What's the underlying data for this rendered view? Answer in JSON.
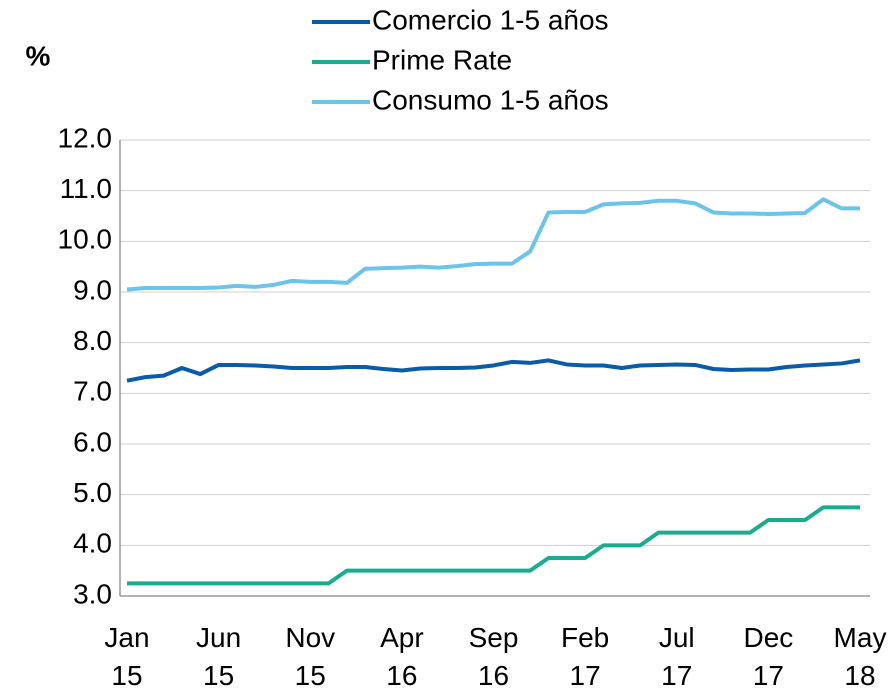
{
  "chart_data": {
    "type": "line",
    "y_label": "%",
    "categories": [
      "Jan 15",
      null,
      null,
      null,
      null,
      "Jun 15",
      null,
      null,
      null,
      null,
      "Nov 15",
      null,
      null,
      null,
      null,
      "Apr 16",
      null,
      null,
      null,
      null,
      "Sep 16",
      null,
      null,
      null,
      null,
      "Feb 17",
      null,
      null,
      null,
      null,
      "Jul 17",
      null,
      null,
      null,
      null,
      "Dec 17",
      null,
      null,
      null,
      null,
      "May 18"
    ],
    "series": [
      {
        "name": "Comercio 1-5 años",
        "color": "#0a5ca8",
        "values": [
          7.25,
          7.32,
          7.35,
          7.5,
          7.38,
          7.56,
          7.56,
          7.55,
          7.53,
          7.5,
          7.5,
          7.5,
          7.52,
          7.52,
          7.48,
          7.45,
          7.49,
          7.5,
          7.5,
          7.51,
          7.55,
          7.62,
          7.6,
          7.65,
          7.57,
          7.55,
          7.55,
          7.5,
          7.55,
          7.56,
          7.57,
          7.56,
          7.48,
          7.46,
          7.47,
          7.47,
          7.52,
          7.55,
          7.57,
          7.59,
          7.65
        ]
      },
      {
        "name": "Prime Rate",
        "color": "#19ac8e",
        "values": [
          3.25,
          3.25,
          3.25,
          3.25,
          3.25,
          3.25,
          3.25,
          3.25,
          3.25,
          3.25,
          3.25,
          3.25,
          3.5,
          3.5,
          3.5,
          3.5,
          3.5,
          3.5,
          3.5,
          3.5,
          3.5,
          3.5,
          3.5,
          3.75,
          3.75,
          3.75,
          4.0,
          4.0,
          4.0,
          4.25,
          4.25,
          4.25,
          4.25,
          4.25,
          4.25,
          4.5,
          4.5,
          4.5,
          4.75,
          4.75,
          4.75
        ]
      },
      {
        "name": "Consumo 1-5 años",
        "color": "#6cc4ea",
        "values": [
          9.05,
          9.08,
          9.08,
          9.08,
          9.08,
          9.09,
          9.12,
          9.1,
          9.14,
          9.22,
          9.2,
          9.2,
          9.18,
          9.46,
          9.47,
          9.48,
          9.5,
          9.48,
          9.51,
          9.55,
          9.56,
          9.56,
          9.8,
          10.57,
          10.58,
          10.58,
          10.73,
          10.75,
          10.76,
          10.8,
          10.8,
          10.75,
          10.57,
          10.55,
          10.55,
          10.54,
          10.55,
          10.56,
          10.83,
          10.65,
          10.65
        ]
      }
    ],
    "ylim": [
      3,
      12
    ],
    "yticks": [
      {
        "value": 3,
        "label": "3.0"
      },
      {
        "value": 4,
        "label": "4.0"
      },
      {
        "value": 5,
        "label": "5.0"
      },
      {
        "value": 6,
        "label": "6.0"
      },
      {
        "value": 7,
        "label": "7.0"
      },
      {
        "value": 8,
        "label": "8.0"
      },
      {
        "value": 9,
        "label": "9.0"
      },
      {
        "value": 10,
        "label": "10.0"
      },
      {
        "value": 11,
        "label": "11.0"
      },
      {
        "value": 12,
        "label": "12.0"
      }
    ],
    "grid": true
  }
}
